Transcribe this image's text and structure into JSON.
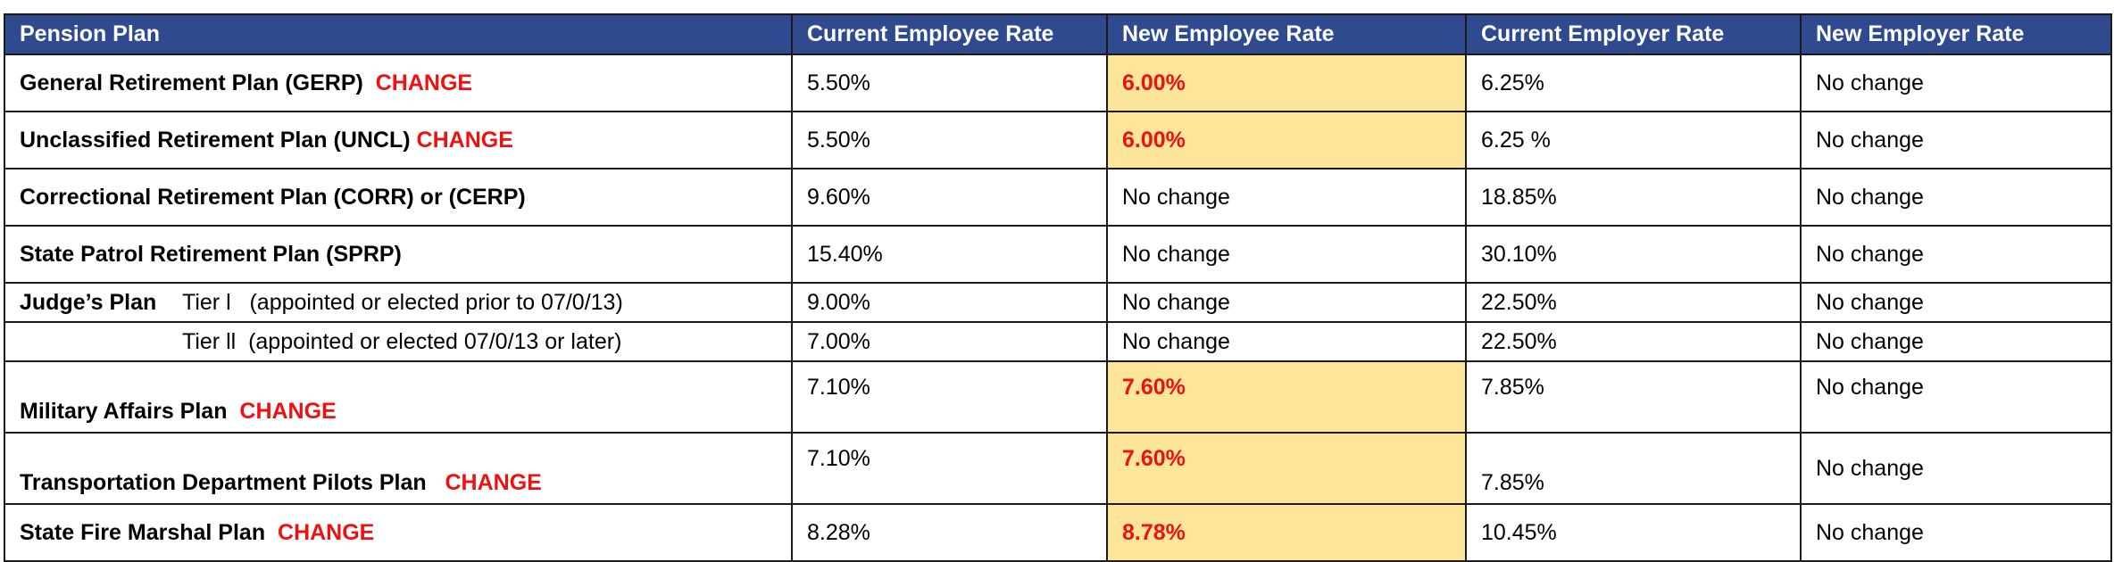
{
  "header": {
    "col_plan": "Pension Plan",
    "col_cur_emp": "Current Employee Rate",
    "col_new_emp": "New Employee Rate",
    "col_cur_er": "Current Employer Rate",
    "col_new_er": "New Employer Rate"
  },
  "rows": [
    {
      "plan": "General Retirement Plan (GERP)",
      "flag": "CHANGE",
      "cur_emp": "5.50%",
      "new_emp": "6.00%",
      "cur_er": "6.25%",
      "new_er": "No change"
    },
    {
      "plan": "Unclassified Retirement Plan (UNCL)",
      "flag": "CHANGE",
      "cur_emp": "5.50%",
      "new_emp": "6.00%",
      "cur_er": "6.25 %",
      "new_er": "No change"
    },
    {
      "plan": "Correctional Retirement Plan (CORR) or (CERP)",
      "cur_emp": "9.60%",
      "new_emp": "No change",
      "cur_er": "18.85%",
      "new_er": "No change"
    },
    {
      "plan": "State Patrol Retirement Plan (SPRP)",
      "cur_emp": "15.40%",
      "new_emp": "No change",
      "cur_er": "30.10%",
      "new_er": "No change"
    },
    {
      "plan": "Judge’s Plan",
      "tier": "Tier l   (appointed or elected prior to 07/0/13)",
      "cur_emp": "9.00%",
      "new_emp": "No change",
      "cur_er": "22.50%",
      "new_er": "No change"
    },
    {
      "tier": "Tier ll  (appointed or elected 07/0/13 or later)",
      "cur_emp": "7.00%",
      "new_emp": "No change",
      "cur_er": "22.50%",
      "new_er": "No change"
    },
    {
      "plan": "Military Affairs Plan",
      "flag": "CHANGE",
      "cur_emp": "7.10%",
      "new_emp": "7.60%",
      "cur_er": "7.85%",
      "new_er": "No change"
    },
    {
      "plan": "Transportation Department Pilots Plan",
      "flag": "CHANGE",
      "cur_emp": "7.10%",
      "new_emp": "7.60%",
      "cur_er": "7.85%",
      "new_er": "No change"
    },
    {
      "plan": "State Fire Marshal Plan",
      "flag": "CHANGE",
      "cur_emp": "8.28%",
      "new_emp": "8.78%",
      "cur_er": "10.45%",
      "new_er": "No change"
    }
  ],
  "colors": {
    "header_bg": "#2f4a8f",
    "highlight_bg": "#fde59a",
    "change_text": "#ee1111"
  }
}
